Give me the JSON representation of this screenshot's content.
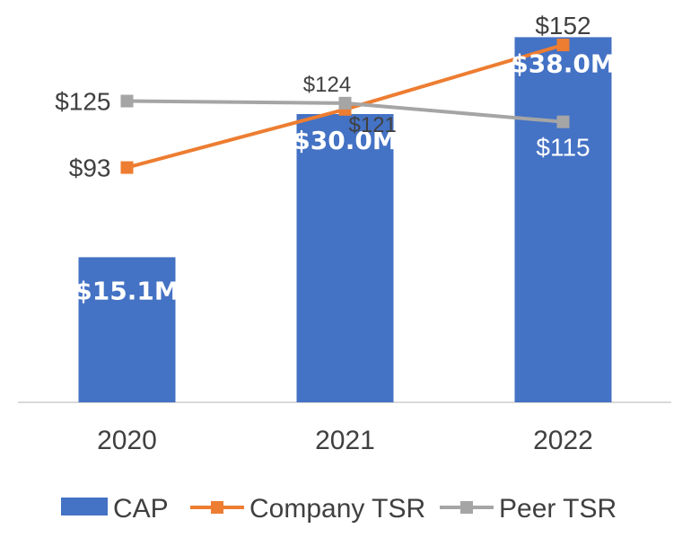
{
  "chart_data": {
    "type": "bar",
    "categories": [
      "2020",
      "2021",
      "2022"
    ],
    "series": [
      {
        "name": "CAP",
        "type": "bar",
        "values": [
          15.1,
          30.0,
          38.0
        ],
        "labels": [
          "$15.1M",
          "$30.0M",
          "$38.0M"
        ],
        "color": "#4472C4",
        "axis": "primary"
      },
      {
        "name": "Company TSR",
        "type": "line",
        "values": [
          93,
          121,
          152
        ],
        "labels": [
          "$93",
          "$121",
          "$152"
        ],
        "color": "#ED7D31",
        "axis": "secondary"
      },
      {
        "name": "Peer TSR",
        "type": "line",
        "values": [
          125,
          124,
          115
        ],
        "labels": [
          "$125",
          "$124",
          "$115"
        ],
        "color": "#A5A5A5",
        "axis": "secondary"
      }
    ],
    "title": "",
    "xlabel": "",
    "ylabel": "",
    "ylim": [
      0,
      40
    ],
    "y2lim": [
      -20,
      165
    ],
    "grid": false,
    "legend": "bottom"
  }
}
